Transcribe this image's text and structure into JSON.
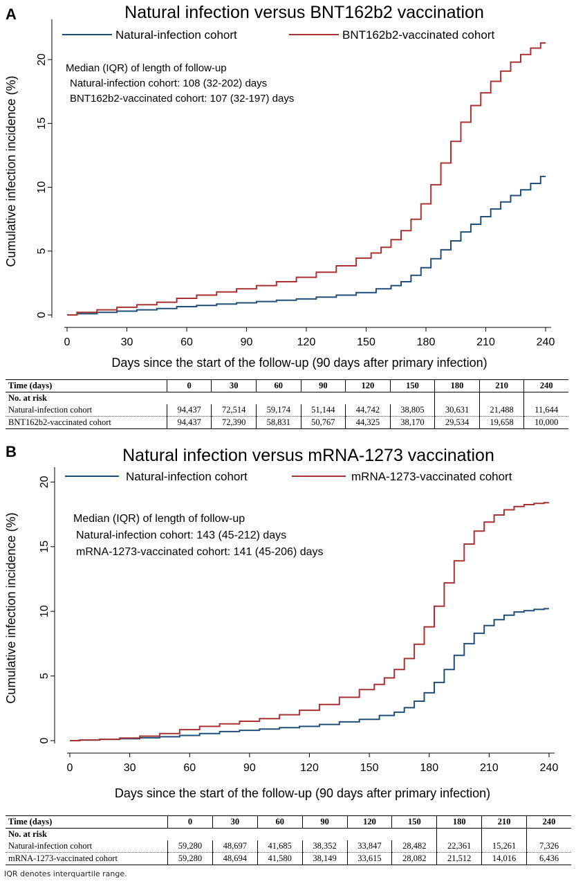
{
  "panels": {
    "a": {
      "letter": "A"
    },
    "b": {
      "letter": "B"
    }
  },
  "chart_data": [
    {
      "type": "line",
      "title": "Natural infection versus BNT162b2 vaccination",
      "xlabel": "Days since the start of the follow-up (90 days after primary infection)",
      "ylabel": "Cumulative infection incidence (%)",
      "xlim": [
        0,
        240
      ],
      "ylim": [
        0,
        22.5
      ],
      "xticks": [
        0,
        30,
        60,
        90,
        120,
        150,
        180,
        210,
        240
      ],
      "yticks": [
        0,
        5,
        10,
        15,
        20
      ],
      "legend_position": "top",
      "annotation": [
        "Median (IQR) of length of follow-up",
        "Natural-infection cohort: 108 (32-202) days",
        "BNT162b2-vaccinated cohort: 107 (32-197) days"
      ],
      "series": [
        {
          "name": "Natural-infection cohort",
          "color": "#1f4e79",
          "x": [
            0,
            10,
            20,
            30,
            40,
            50,
            60,
            70,
            80,
            90,
            100,
            110,
            120,
            130,
            140,
            150,
            160,
            165,
            170,
            175,
            180,
            185,
            190,
            195,
            200,
            205,
            210,
            215,
            220,
            225,
            230,
            235,
            240
          ],
          "y": [
            0,
            0.1,
            0.2,
            0.3,
            0.4,
            0.5,
            0.65,
            0.75,
            0.85,
            0.95,
            1.05,
            1.15,
            1.25,
            1.4,
            1.55,
            1.75,
            2.05,
            2.3,
            2.6,
            3.1,
            3.7,
            4.4,
            5.1,
            5.8,
            6.5,
            7.1,
            7.7,
            8.3,
            8.85,
            9.35,
            9.8,
            10.3,
            10.85
          ]
        },
        {
          "name": "BNT162b2-vaccinated cohort",
          "color": "#a83232",
          "x": [
            0,
            10,
            20,
            30,
            40,
            50,
            60,
            70,
            80,
            90,
            100,
            110,
            120,
            130,
            140,
            150,
            155,
            160,
            165,
            170,
            175,
            180,
            185,
            190,
            195,
            200,
            205,
            210,
            215,
            220,
            225,
            230,
            235,
            240
          ],
          "y": [
            0,
            0.2,
            0.4,
            0.6,
            0.8,
            1.0,
            1.3,
            1.55,
            1.8,
            2.05,
            2.3,
            2.6,
            2.95,
            3.35,
            3.85,
            4.45,
            4.85,
            5.3,
            5.9,
            6.6,
            7.5,
            8.7,
            10.2,
            11.9,
            13.6,
            15.1,
            16.4,
            17.4,
            18.3,
            19.1,
            19.8,
            20.4,
            20.9,
            21.3
          ]
        }
      ]
    },
    {
      "type": "line",
      "title": "Natural infection versus mRNA-1273 vaccination",
      "xlabel": "Days since the start of the follow-up (90 days after primary infection)",
      "ylabel": "Cumulative infection incidence (%)",
      "xlim": [
        0,
        240
      ],
      "ylim": [
        0,
        20.5
      ],
      "xticks": [
        0,
        30,
        60,
        90,
        120,
        150,
        180,
        210,
        240
      ],
      "yticks": [
        0,
        5,
        10,
        15,
        20
      ],
      "legend_position": "top",
      "annotation": [
        "Median (IQR) of length of follow-up",
        "Natural-infection cohort: 143 (45-212) days",
        "mRNA-1273-vaccinated cohort: 141 (45-206) days"
      ],
      "series": [
        {
          "name": "Natural-infection cohort",
          "color": "#1f4e79",
          "x": [
            0,
            10,
            20,
            30,
            40,
            50,
            60,
            70,
            80,
            90,
            100,
            110,
            120,
            130,
            140,
            150,
            160,
            165,
            170,
            175,
            180,
            185,
            190,
            195,
            200,
            205,
            210,
            215,
            220,
            225,
            230,
            235,
            240
          ],
          "y": [
            0,
            0.05,
            0.1,
            0.15,
            0.22,
            0.3,
            0.4,
            0.55,
            0.7,
            0.8,
            0.9,
            1.0,
            1.1,
            1.25,
            1.45,
            1.65,
            1.95,
            2.2,
            2.55,
            3.05,
            3.7,
            4.5,
            5.5,
            6.6,
            7.5,
            8.3,
            8.9,
            9.35,
            9.7,
            9.95,
            10.05,
            10.15,
            10.2
          ]
        },
        {
          "name": "mRNA-1273-vaccinated cohort",
          "color": "#a83232",
          "x": [
            0,
            10,
            20,
            30,
            40,
            50,
            60,
            70,
            80,
            90,
            100,
            110,
            120,
            130,
            140,
            150,
            155,
            160,
            165,
            170,
            175,
            180,
            185,
            190,
            195,
            200,
            205,
            210,
            215,
            220,
            225,
            230,
            235,
            240
          ],
          "y": [
            0,
            0.05,
            0.1,
            0.2,
            0.35,
            0.55,
            0.85,
            1.1,
            1.3,
            1.5,
            1.7,
            2.0,
            2.35,
            2.8,
            3.35,
            3.95,
            4.35,
            4.85,
            5.5,
            6.35,
            7.45,
            8.8,
            10.4,
            12.2,
            13.9,
            15.2,
            16.2,
            16.9,
            17.45,
            17.85,
            18.1,
            18.25,
            18.35,
            18.4
          ]
        }
      ]
    }
  ],
  "tables": [
    {
      "header_label": "Time (days)",
      "times": [
        "0",
        "30",
        "60",
        "90",
        "120",
        "150",
        "180",
        "210",
        "240"
      ],
      "subheader": "No. at risk",
      "rows": [
        {
          "label": "Natural-infection cohort",
          "values": [
            "94,437",
            "72,514",
            "59,174",
            "51,144",
            "44,742",
            "38,805",
            "30,631",
            "21,488",
            "11,644"
          ]
        },
        {
          "label": "BNT162b2-vaccinated cohort",
          "values": [
            "94,437",
            "72,390",
            "58,831",
            "50,767",
            "44,325",
            "38,170",
            "29,534",
            "19,658",
            "10,000"
          ]
        }
      ]
    },
    {
      "header_label": "Time (days)",
      "times": [
        "0",
        "30",
        "60",
        "90",
        "120",
        "150",
        "180",
        "210",
        "240"
      ],
      "subheader": "No. at risk",
      "rows": [
        {
          "label": "Natural-infection cohort",
          "values": [
            "59,280",
            "48,697",
            "41,685",
            "38,352",
            "33,847",
            "28,482",
            "22,361",
            "15,261",
            "7,326"
          ]
        },
        {
          "label": "mRNA-1273-vaccinated cohort",
          "values": [
            "59,280",
            "48,694",
            "41,580",
            "38,149",
            "33,615",
            "28,082",
            "21,512",
            "14,016",
            "6,436"
          ]
        }
      ]
    }
  ],
  "footnote": "IQR denotes interquartile range."
}
